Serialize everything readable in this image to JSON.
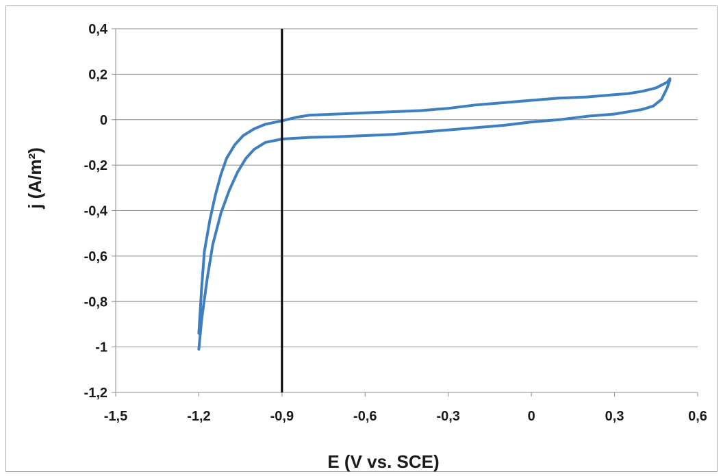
{
  "chart_data": {
    "type": "line",
    "title": "",
    "xlabel": "E (V vs. SCE)",
    "ylabel": "j (A/m²)",
    "xlim": [
      -1.5,
      0.6
    ],
    "ylim": [
      -1.2,
      0.4
    ],
    "x_ticks": [
      -1.5,
      -1.2,
      -0.9,
      -0.6,
      -0.3,
      0,
      0.3,
      0.6
    ],
    "x_tick_labels": [
      "-1,5",
      "-1,2",
      "-0,9",
      "-0,6",
      "-0,3",
      "0",
      "0,3",
      "0,6"
    ],
    "y_ticks": [
      0.4,
      0.2,
      0,
      -0.2,
      -0.4,
      -0.6,
      -0.8,
      -1,
      -1.2
    ],
    "y_tick_labels": [
      "0,4",
      "0,2",
      "0",
      "-0,2",
      "-0,4",
      "-0,6",
      "-0,8",
      "-1",
      "-1,2"
    ],
    "grid": "horizontal",
    "legend": "none",
    "line_color": "#3f7fc0",
    "vertical_marker": {
      "x": -0.9,
      "color": "#000000"
    },
    "series": [
      {
        "values": [
          [
            -1.2,
            -0.94
          ],
          [
            -1.19,
            -0.74
          ],
          [
            -1.18,
            -0.58
          ],
          [
            -1.16,
            -0.44
          ],
          [
            -1.14,
            -0.33
          ],
          [
            -1.12,
            -0.24
          ],
          [
            -1.1,
            -0.17
          ],
          [
            -1.07,
            -0.11
          ],
          [
            -1.04,
            -0.07
          ],
          [
            -1.0,
            -0.04
          ],
          [
            -0.96,
            -0.02
          ],
          [
            -0.9,
            -0.005
          ],
          [
            -0.85,
            0.01
          ],
          [
            -0.8,
            0.02
          ],
          [
            -0.7,
            0.025
          ],
          [
            -0.6,
            0.03
          ],
          [
            -0.5,
            0.035
          ],
          [
            -0.4,
            0.04
          ],
          [
            -0.3,
            0.05
          ],
          [
            -0.2,
            0.065
          ],
          [
            -0.1,
            0.075
          ],
          [
            0.0,
            0.085
          ],
          [
            0.1,
            0.095
          ],
          [
            0.2,
            0.1
          ],
          [
            0.3,
            0.11
          ],
          [
            0.35,
            0.115
          ],
          [
            0.4,
            0.125
          ],
          [
            0.45,
            0.14
          ],
          [
            0.49,
            0.165
          ],
          [
            0.5,
            0.18
          ],
          [
            0.5,
            0.175
          ],
          [
            0.49,
            0.14
          ],
          [
            0.47,
            0.09
          ],
          [
            0.44,
            0.06
          ],
          [
            0.4,
            0.045
          ],
          [
            0.3,
            0.025
          ],
          [
            0.2,
            0.015
          ],
          [
            0.1,
            0.0
          ],
          [
            0.0,
            -0.01
          ],
          [
            -0.1,
            -0.025
          ],
          [
            -0.2,
            -0.035
          ],
          [
            -0.3,
            -0.045
          ],
          [
            -0.4,
            -0.055
          ],
          [
            -0.5,
            -0.065
          ],
          [
            -0.6,
            -0.07
          ],
          [
            -0.7,
            -0.075
          ],
          [
            -0.8,
            -0.078
          ],
          [
            -0.9,
            -0.085
          ],
          [
            -0.96,
            -0.1
          ],
          [
            -1.0,
            -0.13
          ],
          [
            -1.03,
            -0.17
          ],
          [
            -1.06,
            -0.23
          ],
          [
            -1.09,
            -0.31
          ],
          [
            -1.12,
            -0.41
          ],
          [
            -1.15,
            -0.55
          ],
          [
            -1.17,
            -0.7
          ],
          [
            -1.19,
            -0.88
          ],
          [
            -1.2,
            -1.01
          ]
        ]
      }
    ]
  }
}
